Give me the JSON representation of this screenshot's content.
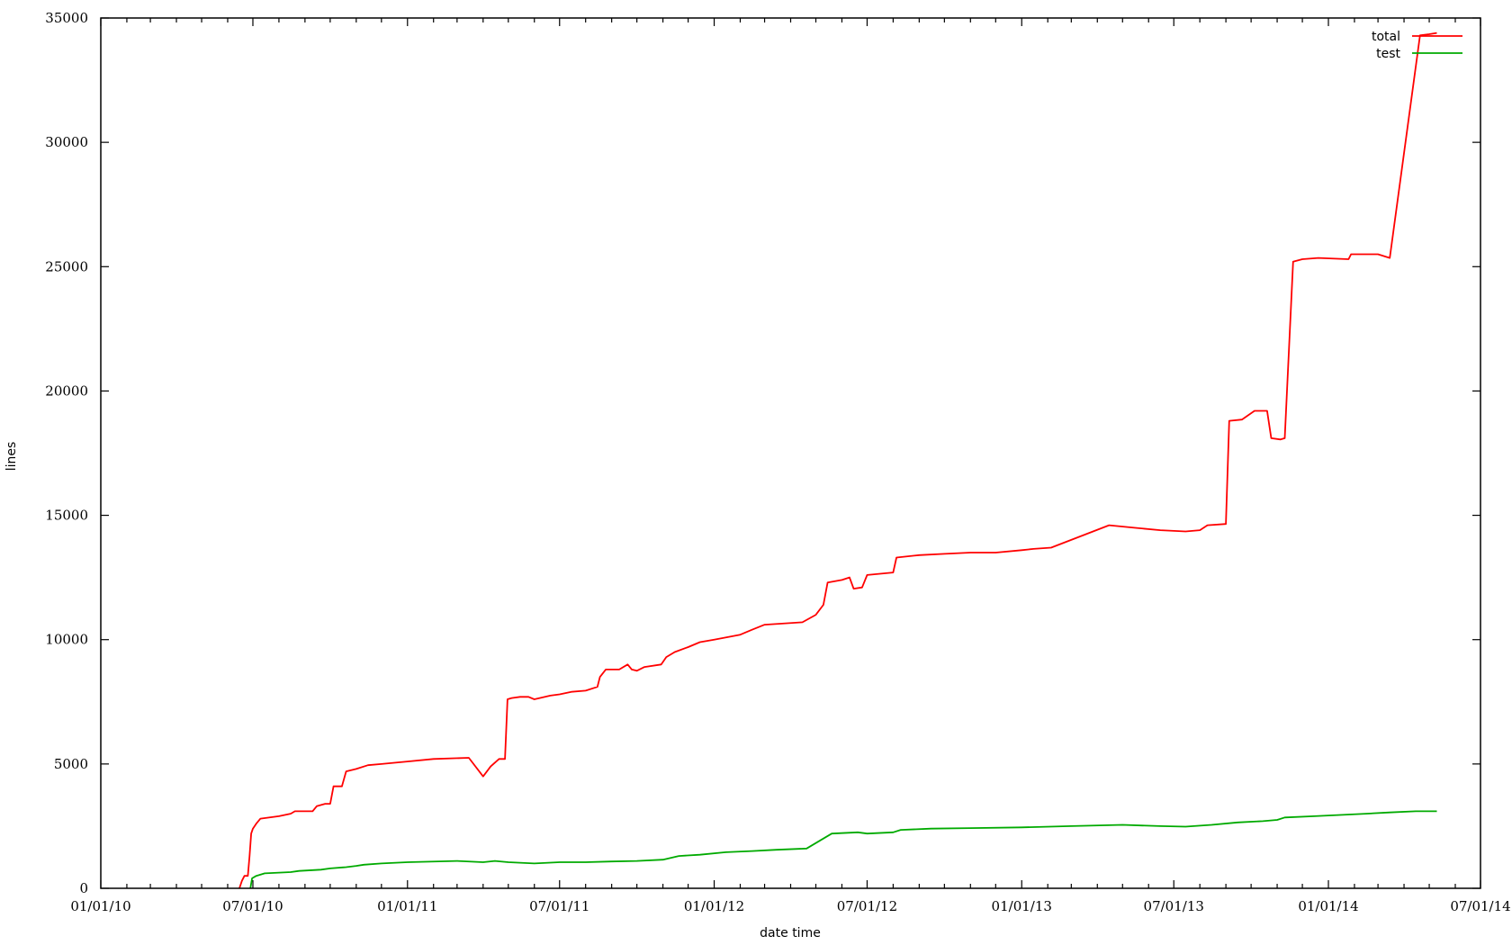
{
  "chart_data": {
    "type": "line",
    "xlabel": "date time",
    "ylabel": "lines",
    "xlim": [
      "2010-01-01",
      "2014-07-01"
    ],
    "ylim": [
      0,
      35000
    ],
    "x_ticks": [
      "01/01/10",
      "07/01/10",
      "01/01/11",
      "07/01/11",
      "01/01/12",
      "07/01/12",
      "01/01/13",
      "07/01/13",
      "01/01/14",
      "07/01/14"
    ],
    "y_ticks": [
      "0",
      "5000",
      "10000",
      "15000",
      "20000",
      "25000",
      "30000",
      "35000"
    ],
    "legend_position": "top-right",
    "grid": false,
    "series": [
      {
        "name": "total",
        "color": "#ff0000",
        "points": [
          [
            "2010-06-15",
            0
          ],
          [
            "2010-06-18",
            300
          ],
          [
            "2010-06-21",
            500
          ],
          [
            "2010-06-25",
            500
          ],
          [
            "2010-06-27",
            1300
          ],
          [
            "2010-06-29",
            2200
          ],
          [
            "2010-07-01",
            2400
          ],
          [
            "2010-07-05",
            2600
          ],
          [
            "2010-07-10",
            2800
          ],
          [
            "2010-08-01",
            2900
          ],
          [
            "2010-08-15",
            3000
          ],
          [
            "2010-08-20",
            3100
          ],
          [
            "2010-09-10",
            3100
          ],
          [
            "2010-09-15",
            3300
          ],
          [
            "2010-09-25",
            3400
          ],
          [
            "2010-10-01",
            3400
          ],
          [
            "2010-10-05",
            4100
          ],
          [
            "2010-10-15",
            4100
          ],
          [
            "2010-10-20",
            4700
          ],
          [
            "2010-11-01",
            4800
          ],
          [
            "2010-11-15",
            4950
          ],
          [
            "2010-12-01",
            5000
          ],
          [
            "2011-01-01",
            5100
          ],
          [
            "2011-02-01",
            5200
          ],
          [
            "2011-03-15",
            5250
          ],
          [
            "2011-04-01",
            4500
          ],
          [
            "2011-04-10",
            4900
          ],
          [
            "2011-04-20",
            5200
          ],
          [
            "2011-04-27",
            5200
          ],
          [
            "2011-04-30",
            7600
          ],
          [
            "2011-05-05",
            7650
          ],
          [
            "2011-05-15",
            7700
          ],
          [
            "2011-05-25",
            7700
          ],
          [
            "2011-06-01",
            7600
          ],
          [
            "2011-06-20",
            7750
          ],
          [
            "2011-07-01",
            7800
          ],
          [
            "2011-07-15",
            7900
          ],
          [
            "2011-08-01",
            7950
          ],
          [
            "2011-08-15",
            8100
          ],
          [
            "2011-08-18",
            8500
          ],
          [
            "2011-08-25",
            8800
          ],
          [
            "2011-09-10",
            8800
          ],
          [
            "2011-09-20",
            9000
          ],
          [
            "2011-09-25",
            8800
          ],
          [
            "2011-10-01",
            8750
          ],
          [
            "2011-10-10",
            8900
          ],
          [
            "2011-10-30",
            9000
          ],
          [
            "2011-11-05",
            9300
          ],
          [
            "2011-11-15",
            9500
          ],
          [
            "2011-12-01",
            9700
          ],
          [
            "2011-12-15",
            9900
          ],
          [
            "2012-01-01",
            10000
          ],
          [
            "2012-02-01",
            10200
          ],
          [
            "2012-02-15",
            10400
          ],
          [
            "2012-03-01",
            10600
          ],
          [
            "2012-04-15",
            10700
          ],
          [
            "2012-05-01",
            11000
          ],
          [
            "2012-05-10",
            11400
          ],
          [
            "2012-05-15",
            12300
          ],
          [
            "2012-06-01",
            12400
          ],
          [
            "2012-06-10",
            12500
          ],
          [
            "2012-06-15",
            12050
          ],
          [
            "2012-06-25",
            12100
          ],
          [
            "2012-07-01",
            12600
          ],
          [
            "2012-08-01",
            12700
          ],
          [
            "2012-08-05",
            13300
          ],
          [
            "2012-09-01",
            13400
          ],
          [
            "2012-10-01",
            13450
          ],
          [
            "2012-11-01",
            13500
          ],
          [
            "2012-12-01",
            13500
          ],
          [
            "2013-01-01",
            13600
          ],
          [
            "2013-01-15",
            13650
          ],
          [
            "2013-02-05",
            13700
          ],
          [
            "2013-04-15",
            14600
          ],
          [
            "2013-05-15",
            14500
          ],
          [
            "2013-06-15",
            14400
          ],
          [
            "2013-07-15",
            14350
          ],
          [
            "2013-08-01",
            14400
          ],
          [
            "2013-08-10",
            14600
          ],
          [
            "2013-09-01",
            14650
          ],
          [
            "2013-09-05",
            18800
          ],
          [
            "2013-09-20",
            18850
          ],
          [
            "2013-10-05",
            19200
          ],
          [
            "2013-10-20",
            19200
          ],
          [
            "2013-10-25",
            18100
          ],
          [
            "2013-11-05",
            18050
          ],
          [
            "2013-11-10",
            18100
          ],
          [
            "2013-11-20",
            25200
          ],
          [
            "2013-12-01",
            25300
          ],
          [
            "2013-12-20",
            25350
          ],
          [
            "2014-01-25",
            25300
          ],
          [
            "2014-01-28",
            25500
          ],
          [
            "2014-03-01",
            25500
          ],
          [
            "2014-03-15",
            25350
          ],
          [
            "2014-04-20",
            34300
          ],
          [
            "2014-05-01",
            34350
          ],
          [
            "2014-05-10",
            34400
          ]
        ]
      },
      {
        "name": "test",
        "color": "#00aa00",
        "points": [
          [
            "2010-06-28",
            0
          ],
          [
            "2010-06-30",
            400
          ],
          [
            "2010-07-05",
            500
          ],
          [
            "2010-07-15",
            600
          ],
          [
            "2010-08-15",
            650
          ],
          [
            "2010-08-25",
            700
          ],
          [
            "2010-09-20",
            750
          ],
          [
            "2010-10-01",
            800
          ],
          [
            "2010-10-20",
            850
          ],
          [
            "2010-11-01",
            900
          ],
          [
            "2010-11-10",
            950
          ],
          [
            "2010-12-01",
            1000
          ],
          [
            "2011-01-01",
            1050
          ],
          [
            "2011-03-01",
            1100
          ],
          [
            "2011-04-01",
            1050
          ],
          [
            "2011-04-15",
            1100
          ],
          [
            "2011-05-01",
            1050
          ],
          [
            "2011-06-01",
            1000
          ],
          [
            "2011-07-01",
            1050
          ],
          [
            "2011-08-01",
            1050
          ],
          [
            "2011-09-01",
            1080
          ],
          [
            "2011-10-01",
            1100
          ],
          [
            "2011-11-01",
            1150
          ],
          [
            "2011-11-20",
            1300
          ],
          [
            "2011-12-15",
            1350
          ],
          [
            "2012-01-15",
            1450
          ],
          [
            "2012-02-15",
            1500
          ],
          [
            "2012-03-15",
            1550
          ],
          [
            "2012-04-20",
            1600
          ],
          [
            "2012-05-20",
            2200
          ],
          [
            "2012-06-20",
            2250
          ],
          [
            "2012-07-01",
            2200
          ],
          [
            "2012-08-01",
            2250
          ],
          [
            "2012-08-10",
            2350
          ],
          [
            "2012-09-15",
            2400
          ],
          [
            "2012-11-01",
            2420
          ],
          [
            "2013-01-01",
            2450
          ],
          [
            "2013-03-01",
            2500
          ],
          [
            "2013-05-01",
            2550
          ],
          [
            "2013-06-15",
            2500
          ],
          [
            "2013-07-15",
            2480
          ],
          [
            "2013-08-15",
            2550
          ],
          [
            "2013-09-15",
            2650
          ],
          [
            "2013-10-15",
            2700
          ],
          [
            "2013-11-01",
            2750
          ],
          [
            "2013-11-10",
            2850
          ],
          [
            "2013-12-15",
            2900
          ],
          [
            "2014-01-15",
            2950
          ],
          [
            "2014-02-15",
            3000
          ],
          [
            "2014-03-15",
            3050
          ],
          [
            "2014-04-15",
            3100
          ],
          [
            "2014-05-10",
            3100
          ]
        ]
      }
    ]
  }
}
